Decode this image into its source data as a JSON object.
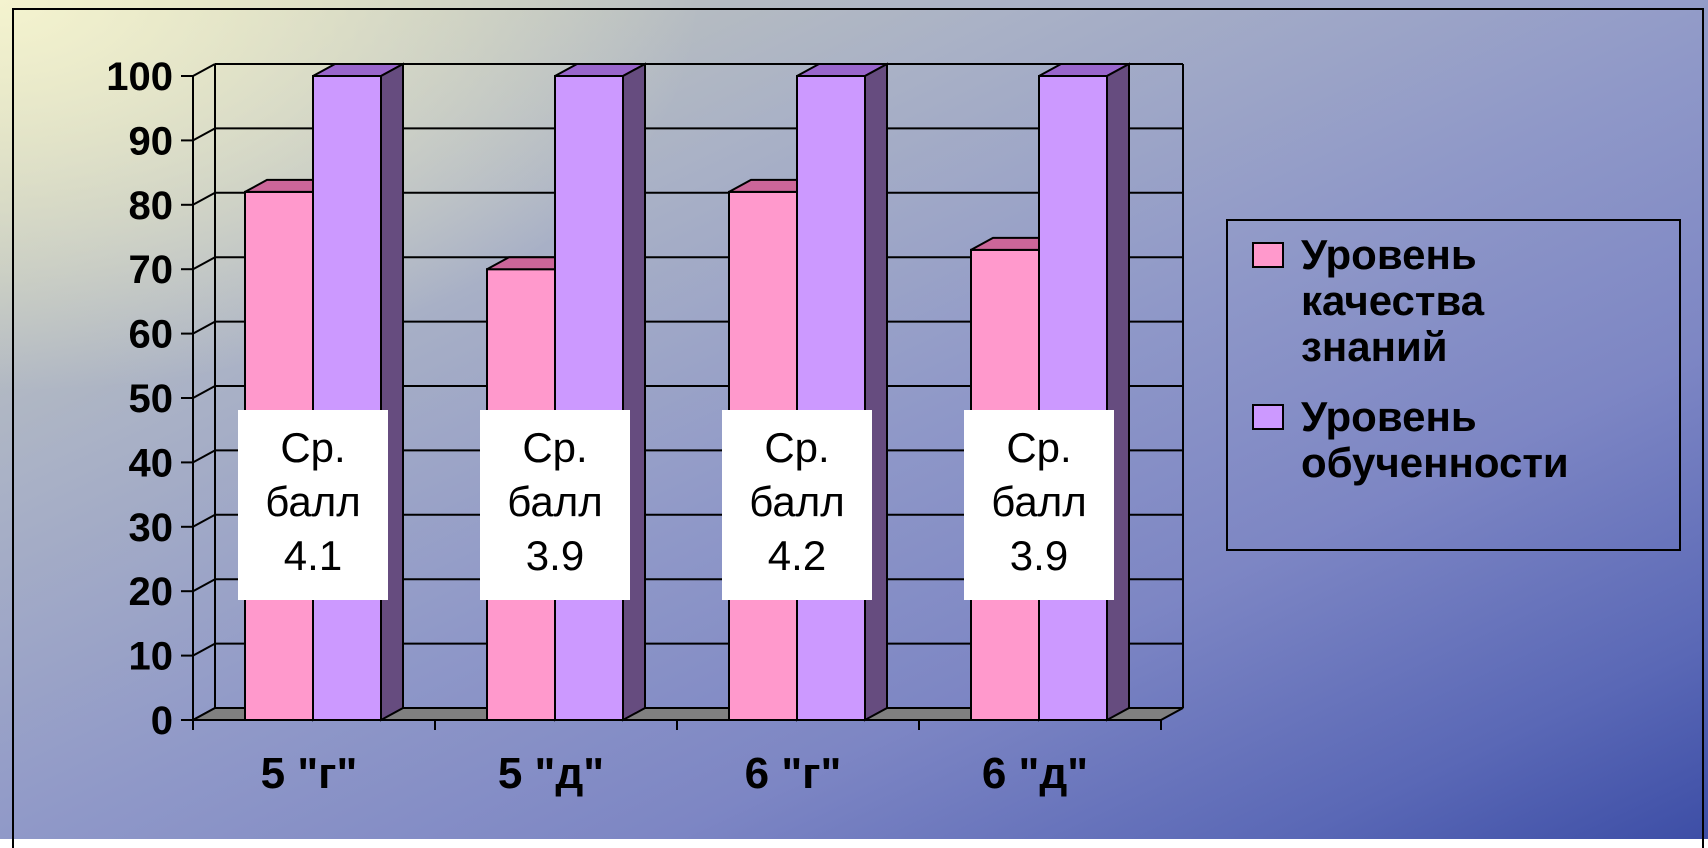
{
  "chart_data": {
    "type": "bar",
    "style": "3d-clustered-column",
    "categories": [
      "5 \"г\"",
      "5 \"д\"",
      "6 \"г\"",
      "6 \"д\""
    ],
    "series": [
      {
        "name": "Уровень качества знаний",
        "values": [
          82,
          70,
          82,
          73
        ],
        "color": "#ff99cc",
        "side_color": "#cc6699"
      },
      {
        "name": "Уровень обученности",
        "values": [
          100,
          100,
          100,
          100
        ],
        "color": "#cc99ff",
        "side_color": "#664c7f"
      }
    ],
    "ylim": [
      0,
      100
    ],
    "yticks": [
      0,
      10,
      20,
      30,
      40,
      50,
      60,
      70,
      80,
      90,
      100
    ],
    "grid": true,
    "legend_position": "right",
    "legend_lines": [
      [
        "Уровень",
        "качества",
        "знаний"
      ],
      [
        "Уровень",
        "обученности"
      ]
    ],
    "annotations": [
      {
        "category": "5 \"г\"",
        "lines": [
          "Ср.",
          "балл",
          "4.1"
        ]
      },
      {
        "category": "5 \"д\"",
        "lines": [
          "Ср.",
          "балл",
          "3.9"
        ]
      },
      {
        "category": "6 \"г\"",
        "lines": [
          "Ср.",
          "балл",
          "4.2"
        ]
      },
      {
        "category": "6 \"д\"",
        "lines": [
          "Ср.",
          "балл",
          "3.9"
        ]
      }
    ]
  }
}
